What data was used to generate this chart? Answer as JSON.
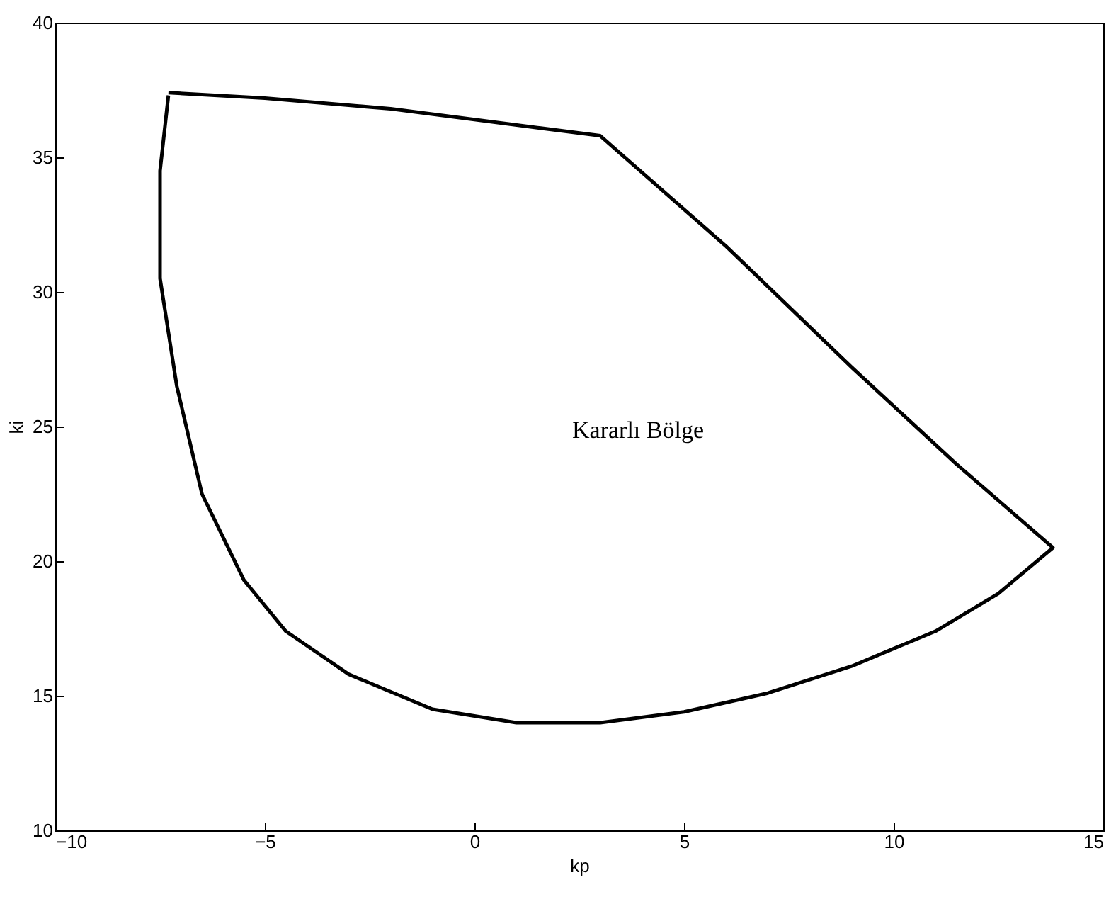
{
  "chart_data": {
    "type": "line",
    "xlabel": "kp",
    "ylabel": "ki",
    "series": [
      {
        "color": "#000000",
        "x": [
          -7.3,
          -5,
          -2,
          0,
          1.5,
          3,
          6,
          9,
          11.5,
          13.8,
          12.5,
          11,
          9,
          7,
          5,
          3,
          1,
          -1,
          -3,
          -4.5,
          -5.5,
          -6.5,
          -7.1,
          -7.5,
          -7.5,
          -7.3
        ],
        "values": [
          37.4,
          37.2,
          36.8,
          36.4,
          36.1,
          35.8,
          31.7,
          27.2,
          23.6,
          20.5,
          18.8,
          17.4,
          16.1,
          15.1,
          14.4,
          14,
          14,
          14.5,
          15.8,
          17.4,
          19.3,
          22.5,
          26.5,
          30.5,
          34.5,
          37.3
        ]
      }
    ],
    "xlim": [
      -10,
      15
    ],
    "xticks": [
      -10,
      -5,
      0,
      5,
      10,
      15
    ],
    "ylim": [
      10,
      40
    ],
    "yticks": [
      10,
      15,
      20,
      25,
      30,
      35,
      40
    ],
    "grid": false,
    "annotations": [
      "Kararlı Bölge"
    ]
  }
}
